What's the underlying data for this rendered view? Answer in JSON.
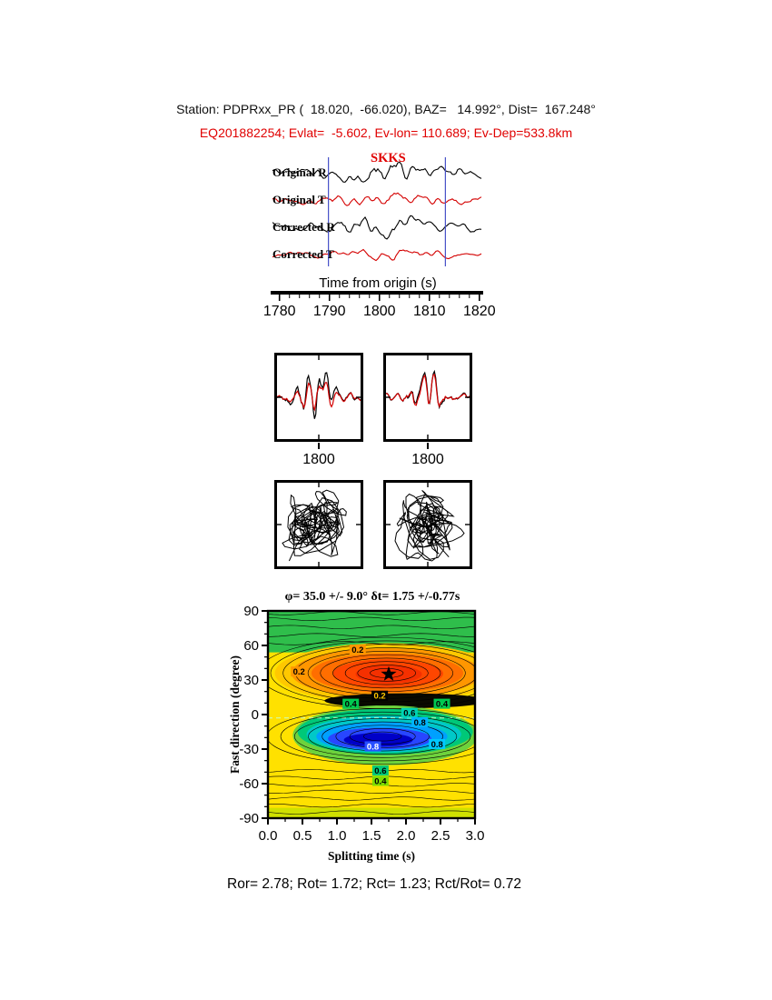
{
  "header": {
    "station_line": "Station: PDPRxx_PR (  18.020,  -66.020), BAZ=   14.992°, Dist=  167.248°",
    "event_line": "EQ201882254; Evlat=  -5.602, Ev-lon= 110.689; Ev-Dep=533.8km"
  },
  "footer": {
    "stats_line": "Ror= 2.78; Rot= 1.72; Rct= 1.23; Rct/Rot= 0.72"
  },
  "chart_data": [
    {
      "type": "line",
      "name": "seismogram-traces",
      "phase_arrival_label": "SKKS",
      "x": {
        "label": "Time from origin (s)",
        "range": [
          1778.6,
          1820.4
        ],
        "ticks": [
          1780,
          1790,
          1800,
          1810,
          1820
        ],
        "minor_tick_interval_s": 2
      },
      "window_s": [
        1789.8,
        1813.2
      ],
      "series": [
        {
          "label": "Original R",
          "color": "#000000",
          "seed": 101,
          "amp": 11
        },
        {
          "label": "Original T",
          "color": "#D40000",
          "seed": 202,
          "amp": 8
        },
        {
          "label": "Corrected R",
          "color": "#000000",
          "seed": 303,
          "amp": 11
        },
        {
          "label": "Corrected T",
          "color": "#D40000",
          "seed": 404,
          "amp": 6
        }
      ]
    },
    {
      "type": "line",
      "name": "corrected-waveform-overlays",
      "boxes": [
        {
          "tick_label": "1800",
          "series": [
            {
              "color": "#000000",
              "seed": 511
            },
            {
              "color": "#D40000",
              "seed": 517,
              "match": 0.72
            }
          ]
        },
        {
          "tick_label": "1800",
          "series": [
            {
              "color": "#000000",
              "seed": 613
            },
            {
              "color": "#D40000",
              "seed": 619,
              "match": 0.9
            }
          ]
        }
      ]
    },
    {
      "type": "line",
      "name": "particle-motion-diagrams",
      "boxes": [
        {
          "seed_x": 701,
          "seed_y": 733
        },
        {
          "seed_x": 811,
          "seed_y": 847
        }
      ]
    },
    {
      "type": "contour",
      "name": "splitting-error-surface",
      "title": "φ= 35.0 +/- 9.0° δt= 1.75 +/-0.77s",
      "xlabel": "Splitting time (s)",
      "ylabel": "Fast direction (degree)",
      "xlim": [
        0,
        3
      ],
      "ylim": [
        -90,
        90
      ],
      "xticks": [
        "0.0",
        "0.5",
        "1.0",
        "1.5",
        "2.0",
        "2.5",
        "3.0"
      ],
      "yticks": [
        90,
        60,
        30,
        0,
        -30,
        -60,
        -90
      ],
      "best_fit": {
        "splitting_time_s": 1.75,
        "fast_direction_deg": 35.0,
        "phi_err_deg": 9.0,
        "dt_err_s": 0.77
      },
      "background": "#FFE100",
      "bands": [
        {
          "phi": [
            54,
            90
          ],
          "fill": "#2FBE4B"
        },
        {
          "phi": [
            -90,
            -81
          ],
          "fill": "#CFE000"
        }
      ],
      "blobs": [
        {
          "dt": 1.72,
          "phi": 36,
          "rt": 1.62,
          "rphi": 26,
          "fill": "#FFC800"
        },
        {
          "dt": 1.72,
          "phi": 36,
          "rt": 1.38,
          "rphi": 21.5,
          "fill": "#FF9600"
        },
        {
          "dt": 1.73,
          "phi": 36,
          "rt": 1.1,
          "rphi": 17,
          "fill": "#FF6E00"
        },
        {
          "dt": 1.74,
          "phi": 35.5,
          "rt": 0.8,
          "rphi": 12.5,
          "fill": "#FF4600"
        },
        {
          "dt": 1.75,
          "phi": 35,
          "rt": 0.48,
          "rphi": 8,
          "fill": "#F53000"
        },
        {
          "dt": 2.0,
          "phi": 12,
          "rt": 1.18,
          "rphi": 6.5,
          "fill": "#0A0A00"
        },
        {
          "dt": 1.7,
          "phi": -18,
          "rt": 1.34,
          "rphi": 26,
          "fill": "#6ED23C"
        },
        {
          "dt": 1.7,
          "phi": -15,
          "rt": 1.27,
          "rphi": 20,
          "fill": "#00C878"
        },
        {
          "dt": 1.68,
          "phi": -17,
          "rt": 1.12,
          "rphi": 16,
          "fill": "#00C8C8"
        },
        {
          "dt": 1.65,
          "phi": -19,
          "rt": 0.95,
          "rphi": 12.5,
          "fill": "#00A0FF"
        },
        {
          "dt": 1.62,
          "phi": -21,
          "rt": 0.75,
          "rphi": 9.5,
          "fill": "#2846FF"
        },
        {
          "dt": 1.6,
          "phi": -22,
          "rt": 0.5,
          "rphi": 6,
          "fill": "#0000C8"
        }
      ],
      "ring_sets": [
        {
          "dt": 1.72,
          "phi": 36,
          "rt": 1.5,
          "rphi": 25,
          "scales": [
            0.16,
            0.28,
            0.4,
            0.52,
            0.64,
            0.76,
            0.88,
            1.0,
            1.12,
            1.24
          ]
        },
        {
          "dt": 1.66,
          "phi": -19,
          "rt": 1.25,
          "rphi": 18,
          "scales": [
            0.22,
            0.38,
            0.54,
            0.7,
            0.86,
            1.02,
            1.18,
            1.34
          ]
        }
      ],
      "hline_phis": [
        62,
        69,
        76,
        83,
        88,
        -49,
        -55,
        -61,
        -67,
        -73,
        -79,
        -85
      ],
      "dashed_line_phi": -3,
      "contour_labels": [
        {
          "text": "0.2",
          "dt": 1.3,
          "phi": 56,
          "bg": "#FF9600",
          "fg": "#000000"
        },
        {
          "text": "0.2",
          "dt": 0.45,
          "phi": 37,
          "bg": "#FF9600",
          "fg": "#000000"
        },
        {
          "text": "0.2",
          "dt": 1.62,
          "phi": 16,
          "bg": "#000000",
          "fg": "#FFC800"
        },
        {
          "text": "0.4",
          "dt": 1.2,
          "phi": 9,
          "bg": "#00C850",
          "fg": "#000000"
        },
        {
          "text": "0.4",
          "dt": 2.52,
          "phi": 9,
          "bg": "#00C850",
          "fg": "#000000"
        },
        {
          "text": "0.6",
          "dt": 2.05,
          "phi": 1,
          "bg": "#00D2B4",
          "fg": "#000000"
        },
        {
          "text": "0.8",
          "dt": 2.2,
          "phi": -7,
          "bg": "#00B4FF",
          "fg": "#000000"
        },
        {
          "text": "0.8",
          "dt": 1.52,
          "phi": -28,
          "bg": "#2850FF",
          "fg": "#FFFFFF"
        },
        {
          "text": "0.8",
          "dt": 2.45,
          "phi": -26,
          "bg": "#00C8FF",
          "fg": "#000000"
        },
        {
          "text": "0.6",
          "dt": 1.63,
          "phi": -49,
          "bg": "#00C878",
          "fg": "#000000"
        },
        {
          "text": "0.4",
          "dt": 1.63,
          "phi": -58,
          "bg": "#7DDC00",
          "fg": "#000000"
        }
      ]
    }
  ]
}
